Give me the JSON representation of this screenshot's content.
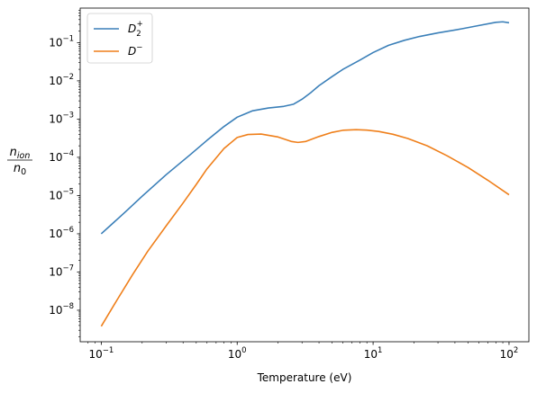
{
  "chart_data": {
    "type": "line",
    "xlabel": "Temperature (eV)",
    "ylabel": {
      "numerator_base": "n",
      "numerator_sub": "ion",
      "denominator_base": "n",
      "denominator_sub": "0"
    },
    "xscale": "log",
    "yscale": "log",
    "xlim": [
      0.07,
      140
    ],
    "ylim": [
      1.5e-09,
      0.8
    ],
    "x_ticks": [
      {
        "value": 0.1,
        "base": "10",
        "exp": "−1"
      },
      {
        "value": 1,
        "base": "10",
        "exp": "0"
      },
      {
        "value": 10,
        "base": "10",
        "exp": "1"
      },
      {
        "value": 100,
        "base": "10",
        "exp": "2"
      }
    ],
    "y_ticks": [
      {
        "value": 1e-08,
        "base": "10",
        "exp": "−8"
      },
      {
        "value": 1e-07,
        "base": "10",
        "exp": "−7"
      },
      {
        "value": 1e-06,
        "base": "10",
        "exp": "−6"
      },
      {
        "value": 1e-05,
        "base": "10",
        "exp": "−5"
      },
      {
        "value": 0.0001,
        "base": "10",
        "exp": "−4"
      },
      {
        "value": 0.001,
        "base": "10",
        "exp": "−3"
      },
      {
        "value": 0.01,
        "base": "10",
        "exp": "−2"
      },
      {
        "value": 0.1,
        "base": "10",
        "exp": "−1"
      }
    ],
    "grid": false,
    "legend": "upper-left",
    "series": [
      {
        "name": "D2+",
        "label_base": "D",
        "label_sub": "2",
        "label_sup": "+",
        "color": "#3a7fb8",
        "x": [
          0.1,
          0.15,
          0.2,
          0.3,
          0.45,
          0.6,
          0.8,
          1.0,
          1.3,
          1.7,
          2.2,
          2.6,
          3.0,
          3.5,
          4.0,
          5.0,
          6.0,
          8.0,
          10,
          13,
          17,
          22,
          30,
          45,
          60,
          80,
          90,
          100
        ],
        "y": [
          1e-06,
          3.7e-06,
          9.6e-06,
          3.5e-05,
          0.000116,
          0.000278,
          0.00064,
          0.00112,
          0.00165,
          0.00195,
          0.00215,
          0.00245,
          0.0033,
          0.005,
          0.0075,
          0.013,
          0.02,
          0.035,
          0.055,
          0.085,
          0.115,
          0.145,
          0.18,
          0.23,
          0.28,
          0.34,
          0.35,
          0.33
        ]
      },
      {
        "name": "D−",
        "label_base": "D",
        "label_sub": "",
        "label_sup": "−",
        "color": "#ef7f1a",
        "x": [
          0.1,
          0.13,
          0.17,
          0.22,
          0.3,
          0.4,
          0.5,
          0.6,
          0.8,
          1.0,
          1.2,
          1.5,
          2.0,
          2.5,
          2.8,
          3.2,
          4.0,
          5.0,
          6.0,
          7.5,
          9.0,
          11,
          14,
          18,
          25,
          35,
          50,
          70,
          100
        ],
        "y": [
          3.8e-09,
          1.8e-08,
          8.5e-08,
          3.5e-07,
          1.6e-06,
          6.4e-06,
          1.95e-05,
          5e-05,
          0.00017,
          0.00033,
          0.000395,
          0.000405,
          0.00034,
          0.00026,
          0.000245,
          0.00026,
          0.00035,
          0.00045,
          0.00051,
          0.00053,
          0.000515,
          0.000475,
          0.0004,
          0.00031,
          0.0002,
          0.00011,
          5.4e-05,
          2.5e-05,
          1.05e-05
        ]
      }
    ]
  }
}
